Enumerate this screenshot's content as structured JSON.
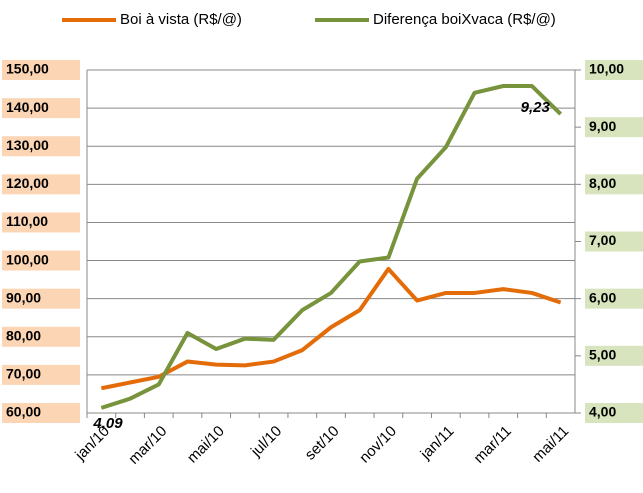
{
  "chart_data": {
    "type": "line",
    "categories": [
      "jan/10",
      null,
      "mar/10",
      null,
      "mai/10",
      null,
      "jul/10",
      null,
      "set/10",
      null,
      "nov/10",
      null,
      "jan/11",
      null,
      "mar/11",
      null,
      "mai/11"
    ],
    "series": [
      {
        "name": "Boi à vista (R$/@)",
        "color": "#e36c09",
        "values": [
          66.5,
          68,
          69.5,
          73.5,
          72.7,
          72.5,
          73.5,
          76.5,
          82.5,
          87,
          97.8,
          89.5,
          91.5,
          91.5,
          92.5,
          91.5,
          89
        ]
      },
      {
        "name": "Diferença boiXvaca (R$/@)",
        "color": "#77933c",
        "axis": "y2",
        "values": [
          4.09,
          4.25,
          4.5,
          5.4,
          5.12,
          5.3,
          5.28,
          5.8,
          6.1,
          6.65,
          6.72,
          8.1,
          8.65,
          9.6,
          9.72,
          9.72,
          9.23
        ],
        "value_labels": [
          "4,09",
          null,
          null,
          null,
          null,
          null,
          null,
          null,
          null,
          null,
          null,
          null,
          null,
          null,
          null,
          null,
          "9,23"
        ]
      }
    ],
    "ylim": [
      60,
      150
    ],
    "yticks": [
      {
        "value": 60,
        "label": "60,00"
      },
      {
        "value": 70,
        "label": "70,00"
      },
      {
        "value": 80,
        "label": "80,00"
      },
      {
        "value": 90,
        "label": "90,00"
      },
      {
        "value": 100,
        "label": "100,00"
      },
      {
        "value": 110,
        "label": "110,00"
      },
      {
        "value": 120,
        "label": "120,00"
      },
      {
        "value": 130,
        "label": "130,00"
      },
      {
        "value": 140,
        "label": "140,00"
      },
      {
        "value": 150,
        "label": "150,00"
      }
    ],
    "y2lim": [
      4,
      10
    ],
    "y2ticks": [
      {
        "value": 4,
        "label": "4,00"
      },
      {
        "value": 5,
        "label": "5,00"
      },
      {
        "value": 6,
        "label": "6,00"
      },
      {
        "value": 7,
        "label": "7,00"
      },
      {
        "value": 8,
        "label": "8,00"
      },
      {
        "value": 9,
        "label": "9,00"
      },
      {
        "value": 10,
        "label": "10,00"
      }
    ],
    "grid": true,
    "legend": "top"
  }
}
